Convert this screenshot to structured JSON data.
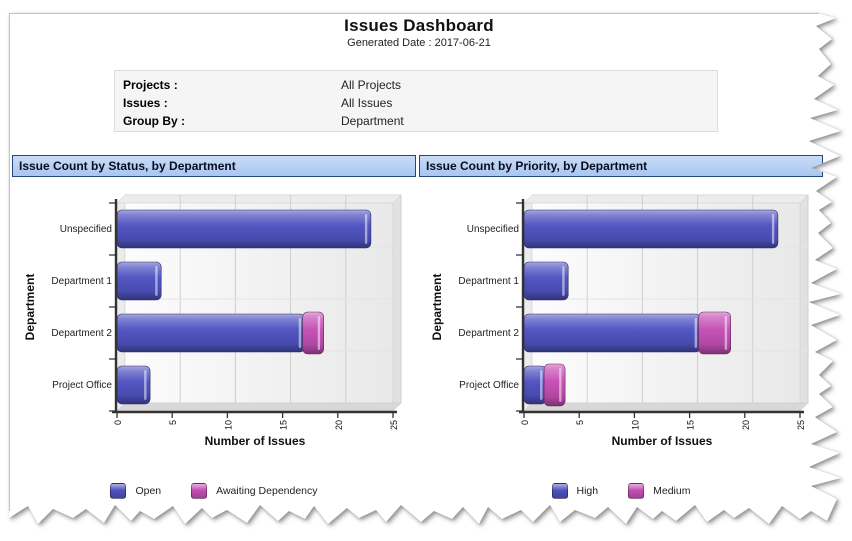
{
  "page": {
    "title": "Issues Dashboard",
    "generated_label": "Generated Date : 2017-06-21"
  },
  "info_panel": {
    "rows": [
      {
        "label": "Projects :",
        "value": "All Projects"
      },
      {
        "label": "Issues :",
        "value": "All Issues"
      },
      {
        "label": "Group By :",
        "value": "Department"
      }
    ]
  },
  "colors": {
    "series_blue": "#4f52c0",
    "series_magenta": "#c44fb4",
    "header_bg": "#b5cff2",
    "header_border": "#26477e"
  },
  "chart_data": [
    {
      "type": "bar",
      "orientation": "horizontal",
      "stacked": true,
      "title": "Issue Count by Status, by Department",
      "categories": [
        "Unspecified",
        "Department 1",
        "Department 2",
        "Project Office"
      ],
      "series": [
        {
          "name": "Open",
          "color": "#4f52c0",
          "values": [
            23,
            4,
            17,
            3
          ]
        },
        {
          "name": "Awaiting Dependency",
          "color": "#c44fb4",
          "values": [
            0,
            0,
            1,
            0
          ]
        }
      ],
      "xlabel": "Number of Issues",
      "ylabel": "Department",
      "xlim": [
        0,
        25
      ],
      "xticks": [
        0,
        5,
        10,
        15,
        20,
        25
      ],
      "grid": true,
      "legend_position": "bottom"
    },
    {
      "type": "bar",
      "orientation": "horizontal",
      "stacked": true,
      "title": "Issue Count by Priority, by Department",
      "categories": [
        "Unspecified",
        "Department 1",
        "Department 2",
        "Project Office"
      ],
      "series": [
        {
          "name": "High",
          "color": "#4f52c0",
          "values": [
            23,
            4,
            16,
            2
          ]
        },
        {
          "name": "Medium",
          "color": "#c44fb4",
          "values": [
            0,
            0,
            2,
            1
          ]
        }
      ],
      "xlabel": "Number of Issues",
      "ylabel": "Department",
      "xlim": [
        0,
        25
      ],
      "xticks": [
        0,
        5,
        10,
        15,
        20,
        25
      ],
      "grid": true,
      "legend_position": "bottom"
    }
  ]
}
